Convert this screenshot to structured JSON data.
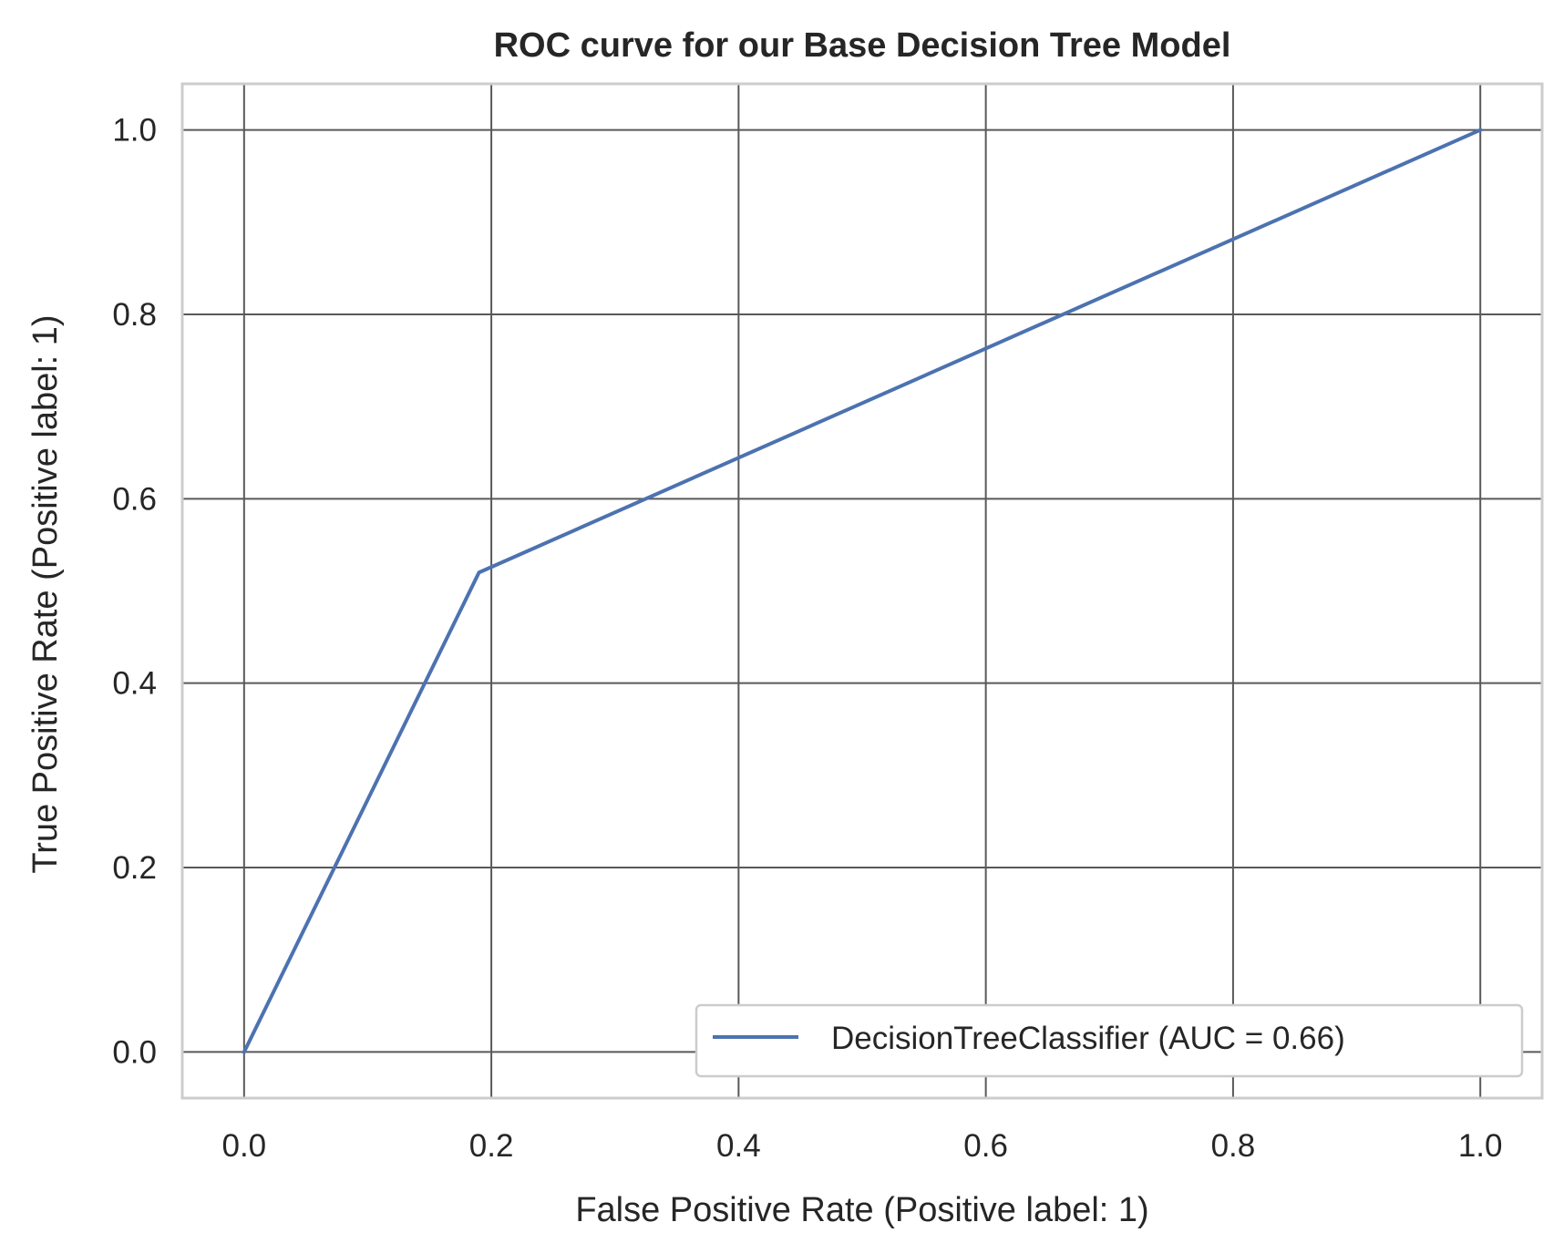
{
  "chart_data": {
    "type": "line",
    "title": "ROC curve for our Base Decision Tree Model",
    "xlabel": "False Positive Rate (Positive label: 1)",
    "ylabel": "True Positive Rate (Positive label: 1)",
    "xlim": [
      -0.05,
      1.05
    ],
    "ylim": [
      -0.05,
      1.05
    ],
    "xticks": [
      0.0,
      0.2,
      0.4,
      0.6,
      0.8,
      1.0
    ],
    "yticks": [
      0.0,
      0.2,
      0.4,
      0.6,
      0.8,
      1.0
    ],
    "xtick_labels": [
      "0.0",
      "0.2",
      "0.4",
      "0.6",
      "0.8",
      "1.0"
    ],
    "ytick_labels": [
      "0.0",
      "0.2",
      "0.4",
      "0.6",
      "0.8",
      "1.0"
    ],
    "grid": true,
    "legend_position": "lower-right",
    "series": [
      {
        "name": "DecisionTreeClassifier (AUC = 0.66)",
        "color": "#4c72b0",
        "x": [
          0.0,
          0.19,
          1.0
        ],
        "y": [
          0.0,
          0.52,
          1.0
        ]
      }
    ]
  },
  "colors": {
    "grid": "#595959",
    "frame": "#cccccc",
    "text": "#262626",
    "line": "#4c72b0"
  }
}
